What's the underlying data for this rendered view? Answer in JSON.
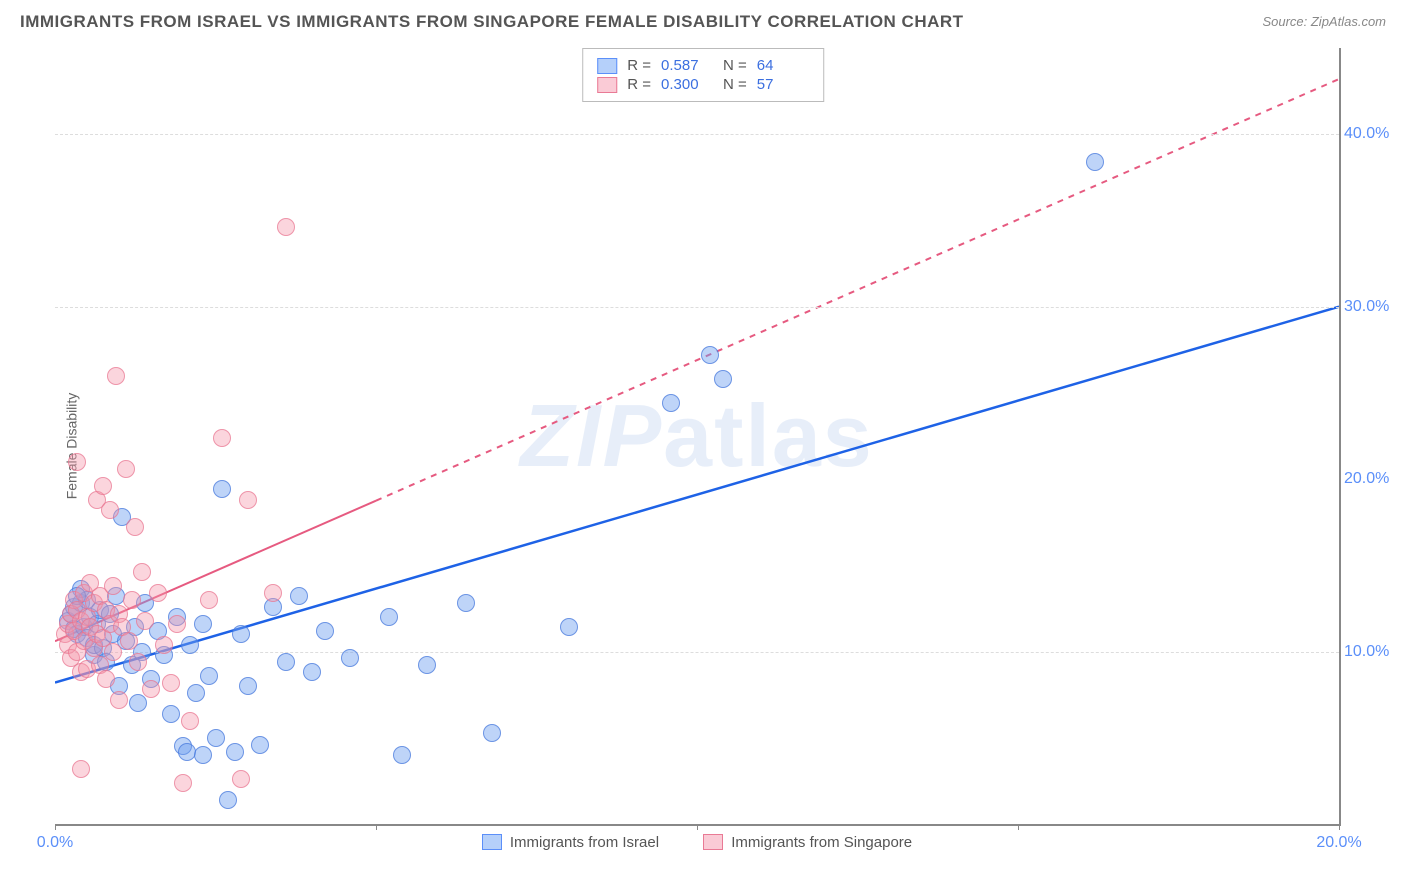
{
  "title": "IMMIGRANTS FROM ISRAEL VS IMMIGRANTS FROM SINGAPORE FEMALE DISABILITY CORRELATION CHART",
  "source": "Source: ZipAtlas.com",
  "ylabel": "Female Disability",
  "watermark": {
    "a": "ZIP",
    "b": "atlas"
  },
  "chart": {
    "type": "scatter",
    "x_domain": [
      0,
      20
    ],
    "y_domain": [
      0,
      45
    ],
    "background_color": "#ffffff",
    "grid_color": "#dddddd",
    "axis_color": "#888888",
    "tick_label_color": "#5b8ff9",
    "tick_fontsize": 16,
    "y_gridlines": [
      10,
      30,
      40
    ],
    "y_tick_labels": {
      "10": "10.0%",
      "30": "30.0%",
      "40": "40.0%"
    },
    "x_ticks": [
      0,
      5,
      10,
      15,
      20
    ],
    "x_tick_labels": {
      "0": "0.0%",
      "20": "20.0%"
    },
    "x_tick_label_show": [
      0,
      20
    ],
    "marker_radius": 9,
    "marker_opacity": 0.45,
    "series": [
      {
        "name": "Immigrants from Israel",
        "color_fill": "#7aa8f5",
        "color_stroke": "#4a78dc",
        "class": "blue",
        "stats": {
          "R": "0.587",
          "N": "64"
        },
        "trend": {
          "x1": 0,
          "y1": 8.2,
          "x2": 20,
          "y2": 30.0,
          "stroke": "#1e62e6",
          "width": 2.5,
          "dash_after_x": null
        },
        "points": [
          [
            0.2,
            11.8
          ],
          [
            0.25,
            12.2
          ],
          [
            0.3,
            11.3
          ],
          [
            0.3,
            12.6
          ],
          [
            0.35,
            11.0
          ],
          [
            0.4,
            12.8
          ],
          [
            0.4,
            13.6
          ],
          [
            0.45,
            11.4
          ],
          [
            0.5,
            10.8
          ],
          [
            0.5,
            13.0
          ],
          [
            0.55,
            12.0
          ],
          [
            0.6,
            9.8
          ],
          [
            0.6,
            10.4
          ],
          [
            0.65,
            11.6
          ],
          [
            0.7,
            12.4
          ],
          [
            0.75,
            10.2
          ],
          [
            0.8,
            9.4
          ],
          [
            0.85,
            12.2
          ],
          [
            0.9,
            11.0
          ],
          [
            0.95,
            13.2
          ],
          [
            1.0,
            8.0
          ],
          [
            1.05,
            17.8
          ],
          [
            1.1,
            10.6
          ],
          [
            1.2,
            9.2
          ],
          [
            1.25,
            11.4
          ],
          [
            1.3,
            7.0
          ],
          [
            1.35,
            10.0
          ],
          [
            1.4,
            12.8
          ],
          [
            1.5,
            8.4
          ],
          [
            1.6,
            11.2
          ],
          [
            1.7,
            9.8
          ],
          [
            1.8,
            6.4
          ],
          [
            1.9,
            12.0
          ],
          [
            2.0,
            4.5
          ],
          [
            2.05,
            4.2
          ],
          [
            2.1,
            10.4
          ],
          [
            2.2,
            7.6
          ],
          [
            2.3,
            11.6
          ],
          [
            2.3,
            4.0
          ],
          [
            2.4,
            8.6
          ],
          [
            2.5,
            5.0
          ],
          [
            2.6,
            19.4
          ],
          [
            2.7,
            1.4
          ],
          [
            2.8,
            4.2
          ],
          [
            2.9,
            11.0
          ],
          [
            3.0,
            8.0
          ],
          [
            3.2,
            4.6
          ],
          [
            3.4,
            12.6
          ],
          [
            3.6,
            9.4
          ],
          [
            3.8,
            13.2
          ],
          [
            4.0,
            8.8
          ],
          [
            4.2,
            11.2
          ],
          [
            4.6,
            9.6
          ],
          [
            5.2,
            12.0
          ],
          [
            5.4,
            4.0
          ],
          [
            5.8,
            9.2
          ],
          [
            6.4,
            12.8
          ],
          [
            6.8,
            5.3
          ],
          [
            8.0,
            11.4
          ],
          [
            9.6,
            24.4
          ],
          [
            10.2,
            27.2
          ],
          [
            10.4,
            25.8
          ],
          [
            16.2,
            38.4
          ],
          [
            0.35,
            13.2
          ]
        ]
      },
      {
        "name": "Immigrants from Singapore",
        "color_fill": "#f6a0b4",
        "color_stroke": "#e97a95",
        "class": "pink",
        "stats": {
          "R": "0.300",
          "N": "57"
        },
        "trend": {
          "x1": 0,
          "y1": 10.6,
          "x2": 20,
          "y2": 43.2,
          "stroke": "#e65a80",
          "width": 2,
          "dash_after_x": 5.0
        },
        "points": [
          [
            0.15,
            11.0
          ],
          [
            0.2,
            11.6
          ],
          [
            0.2,
            10.4
          ],
          [
            0.25,
            12.2
          ],
          [
            0.25,
            9.6
          ],
          [
            0.3,
            13.0
          ],
          [
            0.3,
            11.2
          ],
          [
            0.35,
            10.0
          ],
          [
            0.35,
            12.4
          ],
          [
            0.4,
            8.8
          ],
          [
            0.4,
            11.8
          ],
          [
            0.45,
            13.4
          ],
          [
            0.45,
            10.6
          ],
          [
            0.5,
            9.0
          ],
          [
            0.5,
            12.0
          ],
          [
            0.55,
            14.0
          ],
          [
            0.55,
            11.4
          ],
          [
            0.6,
            10.2
          ],
          [
            0.6,
            12.8
          ],
          [
            0.65,
            18.8
          ],
          [
            0.65,
            11.0
          ],
          [
            0.7,
            9.2
          ],
          [
            0.7,
            13.2
          ],
          [
            0.75,
            10.8
          ],
          [
            0.75,
            19.6
          ],
          [
            0.8,
            12.4
          ],
          [
            0.8,
            8.4
          ],
          [
            0.85,
            11.6
          ],
          [
            0.85,
            18.2
          ],
          [
            0.9,
            13.8
          ],
          [
            0.9,
            10.0
          ],
          [
            0.95,
            26.0
          ],
          [
            1.0,
            12.2
          ],
          [
            1.0,
            7.2
          ],
          [
            1.05,
            11.4
          ],
          [
            1.1,
            20.6
          ],
          [
            1.15,
            10.6
          ],
          [
            1.2,
            13.0
          ],
          [
            1.25,
            17.2
          ],
          [
            1.3,
            9.4
          ],
          [
            1.35,
            14.6
          ],
          [
            1.4,
            11.8
          ],
          [
            1.5,
            7.8
          ],
          [
            1.6,
            13.4
          ],
          [
            1.7,
            10.4
          ],
          [
            1.8,
            8.2
          ],
          [
            1.9,
            11.6
          ],
          [
            2.0,
            2.4
          ],
          [
            2.1,
            6.0
          ],
          [
            2.4,
            13.0
          ],
          [
            2.6,
            22.4
          ],
          [
            2.9,
            2.6
          ],
          [
            3.0,
            18.8
          ],
          [
            3.4,
            13.4
          ],
          [
            3.6,
            34.6
          ],
          [
            0.4,
            3.2
          ],
          [
            0.35,
            21.0
          ]
        ]
      }
    ],
    "legend_top": {
      "label_R": "R =",
      "label_N": "N ="
    },
    "legend_bottom": [
      {
        "class": "blue",
        "label": "Immigrants from Israel"
      },
      {
        "class": "pink",
        "label": "Immigrants from Singapore"
      }
    ]
  }
}
